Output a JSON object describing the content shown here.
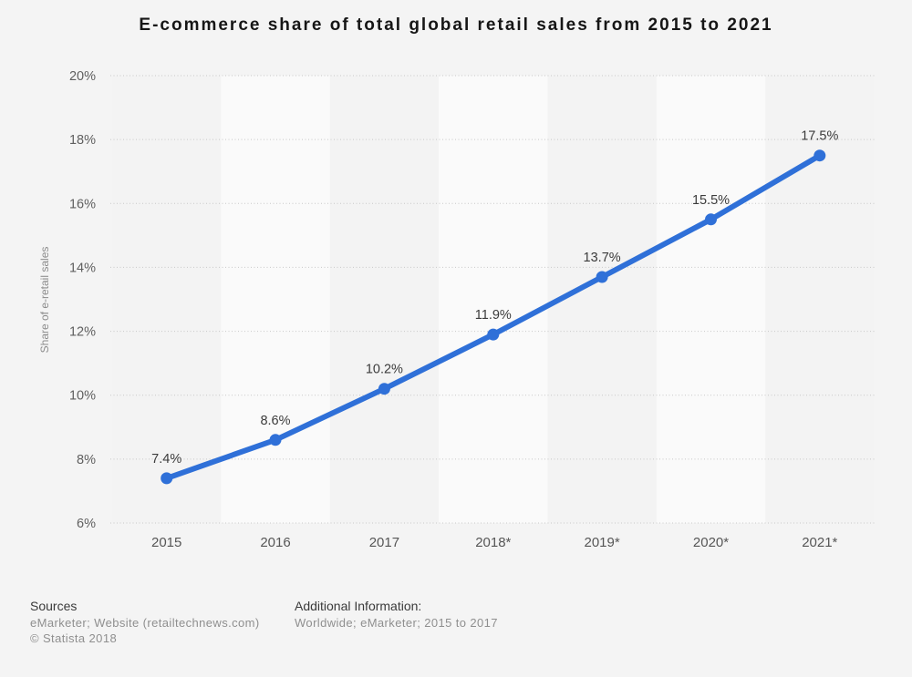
{
  "title": "E-commerce share of total global retail sales from 2015 to 2021",
  "chart_data": {
    "type": "line",
    "title": "E-commerce share of total global retail sales from 2015 to 2021",
    "categories": [
      "2015",
      "2016",
      "2017",
      "2018*",
      "2019*",
      "2020*",
      "2021*"
    ],
    "values": [
      7.4,
      8.6,
      10.2,
      11.9,
      13.7,
      15.5,
      17.5
    ],
    "data_labels": [
      "7.4%",
      "8.6%",
      "10.2%",
      "11.9%",
      "13.7%",
      "15.5%",
      "17.5%"
    ],
    "xlabel": "",
    "ylabel": "Share of e-retail sales",
    "ylim": [
      6,
      20
    ],
    "ytick_step": 2,
    "ytick_labels": [
      "6%",
      "8%",
      "10%",
      "12%",
      "14%",
      "16%",
      "18%",
      "20%"
    ],
    "grid": "horizontal-dotted",
    "legend": "none",
    "marker": "circle",
    "colors": {
      "line": "#2f70d8",
      "marker": "#2f70d8",
      "grid": "#c8c8c8",
      "band_dark": "#f3f3f3",
      "band_light": "#fafafa",
      "ytick_text": "#5f5f5f",
      "xtick_text": "#565656",
      "data_label_text": "#3b3b3b",
      "axis_title_text": "#8c8c8c",
      "background": "#f4f4f4"
    }
  },
  "footer": {
    "sources_label": "Sources",
    "sources_line1": "eMarketer; Website (retailtechnews.com)",
    "copyright": "© Statista 2018",
    "additional_label": "Additional Information:",
    "additional_line1": "Worldwide; eMarketer; 2015 to 2017"
  }
}
